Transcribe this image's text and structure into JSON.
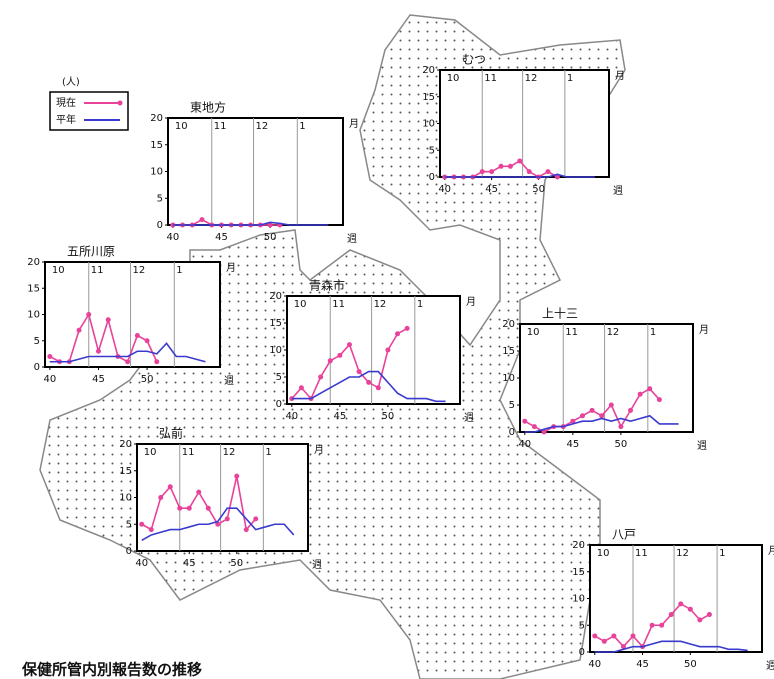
{
  "legend_unit": "(人)",
  "caption": "保健所管内別報告数の推移",
  "chart_data": [
    {
      "type": "line",
      "title": "東地方",
      "x": [
        40,
        41,
        42,
        43,
        44,
        45,
        46,
        47,
        48,
        49,
        50,
        51,
        52,
        53,
        54,
        55,
        56
      ],
      "series": [
        {
          "name": "現在",
          "color": "#e8429a",
          "values": [
            0,
            0,
            0,
            1,
            0,
            0,
            0,
            0,
            0,
            0,
            0,
            0,
            null,
            null,
            null,
            null,
            null
          ]
        },
        {
          "name": "平年",
          "color": "#3a3ad0",
          "values": [
            0,
            0,
            0,
            0,
            0,
            0,
            0,
            0,
            0,
            0,
            0.5,
            0.3,
            0,
            0,
            0,
            0,
            0
          ]
        }
      ],
      "xlim": [
        39.5,
        57.5
      ],
      "ylim": [
        0,
        20
      ],
      "xticks": [
        40,
        45,
        50
      ],
      "yticks": [
        0,
        5,
        10,
        15,
        20
      ],
      "months": [
        {
          "value": 40,
          "label": "10"
        },
        {
          "value": 44,
          "label": "11"
        },
        {
          "value": 48.3,
          "label": "12"
        },
        {
          "value": 52.8,
          "label": "1"
        }
      ],
      "month_unit": "月",
      "week_unit": "週"
    },
    {
      "type": "line",
      "title": "むつ",
      "x": [
        40,
        41,
        42,
        43,
        44,
        45,
        46,
        47,
        48,
        49,
        50,
        51,
        52,
        53,
        54,
        55,
        56
      ],
      "series": [
        {
          "color": "#e8429a",
          "values": [
            0,
            0,
            0,
            0,
            1,
            1,
            2,
            2,
            3,
            1,
            0,
            1,
            0,
            null,
            null,
            null,
            null
          ]
        },
        {
          "color": "#3a3ad0",
          "values": [
            0,
            0,
            0,
            0,
            0,
            0,
            0,
            0,
            0,
            0,
            0,
            0,
            0.5,
            0,
            0,
            0,
            0
          ]
        }
      ],
      "xlim": [
        39.5,
        57.5
      ],
      "ylim": [
        0,
        20
      ],
      "xticks": [
        40,
        45,
        50
      ],
      "yticks": [
        0,
        5,
        10,
        15,
        20
      ],
      "months": [
        {
          "value": 40,
          "label": "10"
        },
        {
          "value": 44,
          "label": "11"
        },
        {
          "value": 48.3,
          "label": "12"
        },
        {
          "value": 52.8,
          "label": "1"
        }
      ],
      "month_unit": "月",
      "week_unit": "週"
    },
    {
      "type": "line",
      "title": "五所川原",
      "x": [
        40,
        41,
        42,
        43,
        44,
        45,
        46,
        47,
        48,
        49,
        50,
        51,
        52,
        53,
        54,
        55,
        56
      ],
      "series": [
        {
          "color": "#e8429a",
          "values": [
            2,
            1,
            1,
            7,
            10,
            3,
            9,
            2,
            1,
            6,
            5,
            1,
            null,
            null,
            null,
            null,
            null
          ]
        },
        {
          "color": "#3a3ad0",
          "values": [
            1,
            1,
            1,
            1.5,
            2,
            2,
            2,
            2,
            2,
            3,
            3,
            2.5,
            4.5,
            2,
            2,
            1.5,
            1
          ]
        }
      ],
      "xlim": [
        39.5,
        57.5
      ],
      "ylim": [
        0,
        20
      ],
      "xticks": [
        40,
        45,
        50
      ],
      "yticks": [
        0,
        5,
        10,
        15,
        20
      ],
      "months": [
        {
          "value": 40,
          "label": "10"
        },
        {
          "value": 44,
          "label": "11"
        },
        {
          "value": 48.3,
          "label": "12"
        },
        {
          "value": 52.8,
          "label": "1"
        }
      ],
      "month_unit": "月",
      "week_unit": "週"
    },
    {
      "type": "line",
      "title": "青森市",
      "x": [
        40,
        41,
        42,
        43,
        44,
        45,
        46,
        47,
        48,
        49,
        50,
        51,
        52,
        53,
        54,
        55,
        56
      ],
      "series": [
        {
          "color": "#e8429a",
          "values": [
            1,
            3,
            1,
            5,
            8,
            9,
            11,
            6,
            4,
            3,
            10,
            13,
            14,
            null,
            null,
            null,
            null
          ]
        },
        {
          "color": "#3a3ad0",
          "values": [
            1,
            1,
            1,
            2,
            3,
            4,
            5,
            5,
            6,
            6,
            4,
            2,
            1,
            1,
            1,
            0.5,
            0.5
          ]
        }
      ],
      "xlim": [
        39.5,
        57.5
      ],
      "ylim": [
        0,
        20
      ],
      "xticks": [
        40,
        45,
        50
      ],
      "yticks": [
        0,
        5,
        10,
        15,
        20
      ],
      "months": [
        {
          "value": 40,
          "label": "10"
        },
        {
          "value": 44,
          "label": "11"
        },
        {
          "value": 48.3,
          "label": "12"
        },
        {
          "value": 52.8,
          "label": "1"
        }
      ],
      "month_unit": "月",
      "week_unit": "週"
    },
    {
      "type": "line",
      "title": "上十三",
      "x": [
        40,
        41,
        42,
        43,
        44,
        45,
        46,
        47,
        48,
        49,
        50,
        51,
        52,
        53,
        54,
        55,
        56
      ],
      "series": [
        {
          "color": "#e8429a",
          "values": [
            2,
            1,
            0,
            1,
            1,
            2,
            3,
            4,
            3,
            5,
            1,
            4,
            7,
            8,
            6,
            null,
            null
          ]
        },
        {
          "color": "#3a3ad0",
          "values": [
            0,
            0,
            0.5,
            1,
            1,
            1.5,
            2,
            2,
            2.5,
            2,
            2.5,
            2,
            2.5,
            3,
            1.5,
            1.5,
            1.5
          ]
        }
      ],
      "xlim": [
        39.5,
        57.5
      ],
      "ylim": [
        0,
        20
      ],
      "xticks": [
        40,
        45,
        50
      ],
      "yticks": [
        0,
        5,
        10,
        15,
        20
      ],
      "months": [
        {
          "value": 40,
          "label": "10"
        },
        {
          "value": 44,
          "label": "11"
        },
        {
          "value": 48.3,
          "label": "12"
        },
        {
          "value": 52.8,
          "label": "1"
        }
      ],
      "month_unit": "月",
      "week_unit": "週"
    },
    {
      "type": "line",
      "title": "弘前",
      "x": [
        40,
        41,
        42,
        43,
        44,
        45,
        46,
        47,
        48,
        49,
        50,
        51,
        52,
        53,
        54,
        55,
        56
      ],
      "series": [
        {
          "color": "#e8429a",
          "values": [
            5,
            4,
            10,
            12,
            8,
            8,
            11,
            8,
            5,
            6,
            14,
            4,
            6,
            null,
            null,
            null,
            null
          ]
        },
        {
          "color": "#3a3ad0",
          "values": [
            2,
            3,
            3.5,
            4,
            4,
            4.5,
            5,
            5,
            5.5,
            8,
            8,
            6,
            4,
            4.5,
            5,
            5,
            3
          ]
        }
      ],
      "xlim": [
        39.5,
        57.5
      ],
      "ylim": [
        0,
        20
      ],
      "xticks": [
        40,
        45,
        50
      ],
      "yticks": [
        0,
        5,
        10,
        15,
        20
      ],
      "months": [
        {
          "value": 40,
          "label": "10"
        },
        {
          "value": 44,
          "label": "11"
        },
        {
          "value": 48.3,
          "label": "12"
        },
        {
          "value": 52.8,
          "label": "1"
        }
      ],
      "month_unit": "月",
      "week_unit": "週"
    },
    {
      "type": "line",
      "title": "八戸",
      "x": [
        40,
        41,
        42,
        43,
        44,
        45,
        46,
        47,
        48,
        49,
        50,
        51,
        52,
        53,
        54,
        55,
        56
      ],
      "series": [
        {
          "color": "#e8429a",
          "values": [
            3,
            2,
            3,
            1,
            3,
            1,
            5,
            5,
            7,
            9,
            8,
            6,
            7,
            null,
            null,
            null,
            null
          ]
        },
        {
          "color": "#3a3ad0",
          "values": [
            0,
            0,
            0,
            0.5,
            1,
            1,
            1.5,
            2,
            2,
            2,
            1.5,
            1,
            1,
            1,
            0.5,
            0.5,
            0.3
          ]
        }
      ],
      "xlim": [
        39.5,
        57.5
      ],
      "ylim": [
        0,
        20
      ],
      "xticks": [
        40,
        45,
        50
      ],
      "yticks": [
        0,
        5,
        10,
        15,
        20
      ],
      "months": [
        {
          "value": 40,
          "label": "10"
        },
        {
          "value": 44,
          "label": "11"
        },
        {
          "value": 48.3,
          "label": "12"
        },
        {
          "value": 52.8,
          "label": "1"
        }
      ],
      "month_unit": "月",
      "week_unit": "週"
    }
  ]
}
